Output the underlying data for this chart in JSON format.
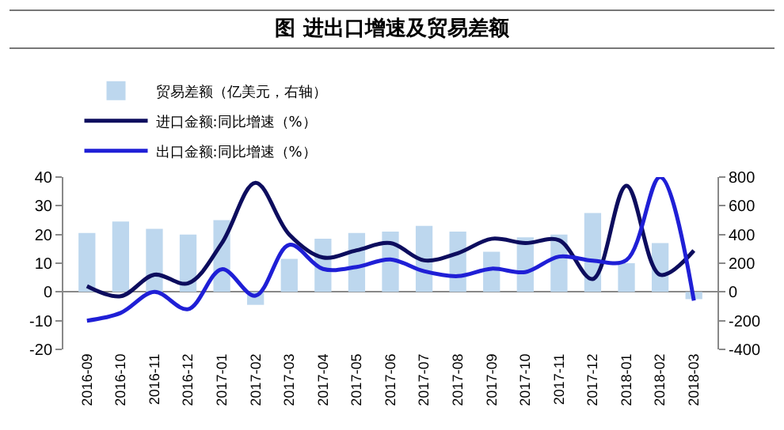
{
  "chart_data": {
    "type": "bar",
    "title": "图 进出口增速及贸易差额",
    "categories": [
      "2016-09",
      "2016-10",
      "2016-11",
      "2016-12",
      "2017-01",
      "2017-02",
      "2017-03",
      "2017-04",
      "2017-05",
      "2017-06",
      "2017-07",
      "2017-08",
      "2017-09",
      "2017-10",
      "2017-11",
      "2017-12",
      "2018-01",
      "2018-02",
      "2018-03"
    ],
    "series": [
      {
        "name": "贸易差额（亿美元，右轴）",
        "axis": "y2",
        "color": "#bdd7ee",
        "values": [
          410,
          490,
          440,
          400,
          500,
          -90,
          230,
          370,
          410,
          420,
          460,
          420,
          280,
          380,
          400,
          550,
          200,
          340,
          -50
        ]
      },
      {
        "name": "进口金额:同比增速（%）",
        "type": "line",
        "color": "#0d0d5e",
        "values": [
          2,
          -1.5,
          6,
          3,
          17,
          38,
          20,
          12,
          14.5,
          17,
          11,
          13.5,
          18.5,
          17,
          18,
          4.5,
          37,
          6,
          14.4
        ]
      },
      {
        "name": "出口金额:同比增速（%）",
        "type": "line",
        "color": "#1f1fd6",
        "values": [
          -10,
          -7.3,
          0,
          -6,
          7.9,
          -1.3,
          16.4,
          8,
          8.7,
          11.3,
          7.2,
          5.5,
          8.1,
          6.9,
          12.3,
          10.9,
          11.1,
          40,
          -3
        ]
      }
    ],
    "ylim": [
      -20,
      40
    ],
    "yticks": [
      -20,
      -10,
      0,
      10,
      20,
      30,
      40
    ],
    "y2lim": [
      -400,
      800
    ],
    "y2ticks": [
      -400,
      -200,
      0,
      200,
      400,
      600,
      800
    ],
    "legend": "top"
  }
}
